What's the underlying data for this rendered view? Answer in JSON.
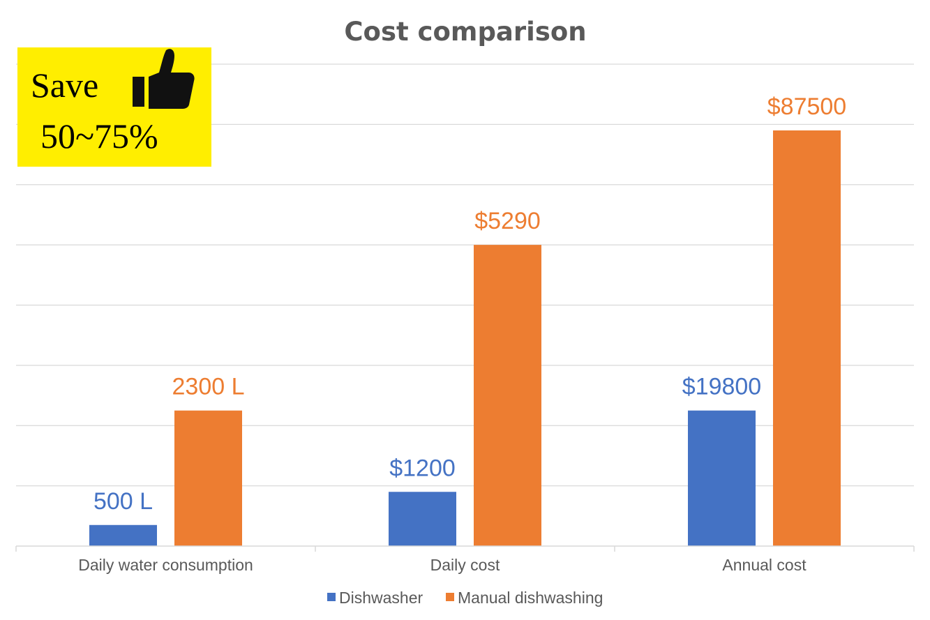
{
  "chart_data": {
    "type": "bar",
    "title": "Cost comparison",
    "categories": [
      "Daily water consumption",
      "Daily cost",
      "Annual cost"
    ],
    "series": [
      {
        "name": "Dishwasher",
        "color": "#4472c4",
        "values": [
          0.7,
          1.8,
          4.5
        ],
        "labels": [
          "500 L",
          "$1200",
          "$19800"
        ]
      },
      {
        "name": "Manual dishwashing",
        "color": "#ed7d31",
        "values": [
          4.5,
          10.0,
          13.8
        ],
        "labels": [
          "2300 L",
          "$5290",
          "$87500"
        ]
      }
    ],
    "ylim": [
      0,
      16
    ],
    "gridlines": true,
    "legend": "bottom",
    "xlabel": "",
    "ylabel": ""
  },
  "badge": {
    "line1": "Save",
    "line2": "50~75%",
    "icon": "thumbs-up-icon",
    "background": "#ffee00"
  }
}
